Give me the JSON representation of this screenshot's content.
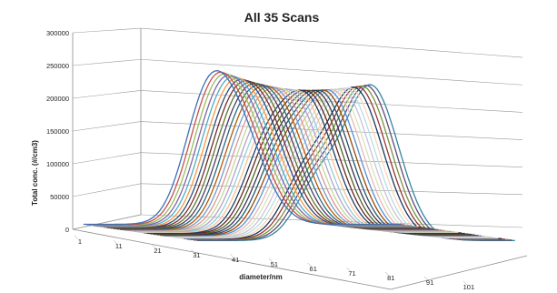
{
  "chart_data": {
    "type": "line",
    "title": "All 35 Scans",
    "xlabel": "diameter/nm",
    "ylabel": "Total conc. (#/cm3)",
    "ylim": [
      0,
      300000
    ],
    "yticks": [
      "0",
      "50000",
      "100000",
      "150000",
      "200000",
      "250000",
      "300000"
    ],
    "xticks": [
      "1",
      "11",
      "21",
      "31",
      "41",
      "51",
      "61",
      "71",
      "81",
      "91",
      "101"
    ],
    "x_range": [
      1,
      105
    ],
    "grid": true,
    "legend": "none",
    "view": "3d-depth",
    "series_count": 35,
    "series_profile": {
      "shoulder_mean_nm": 40,
      "shoulder_sd_nm": 7,
      "peak_mean_nm_first": 50,
      "peak_mean_nm_last": 58,
      "peak_sd_nm": 9,
      "shoulder_amp_first": 120000,
      "shoulder_amp_last": 75000,
      "peak_amp_first": 165000,
      "peak_amp_last": 235000,
      "baseline": 10000
    },
    "colors": [
      "#3b6fb6",
      "#c0504d",
      "#9bbb59",
      "#8064a2",
      "#4bacc6",
      "#f79646",
      "#2c4d75",
      "#772c2a",
      "#5f7530",
      "#4d3b62",
      "#276a7c",
      "#b65708",
      "#729aca",
      "#d99694",
      "#c3d69b",
      "#b3a2c7",
      "#93cddd",
      "#fac090",
      "#1f3f66",
      "#632423",
      "#4f6228",
      "#3f3151",
      "#205867",
      "#984807",
      "#558ed5",
      "#e6b9b8",
      "#d7e4bd",
      "#ccc1da",
      "#b7dee8",
      "#fcd5b5",
      "#17375e",
      "#953735",
      "#76923c",
      "#60497a",
      "#31859c"
    ]
  }
}
